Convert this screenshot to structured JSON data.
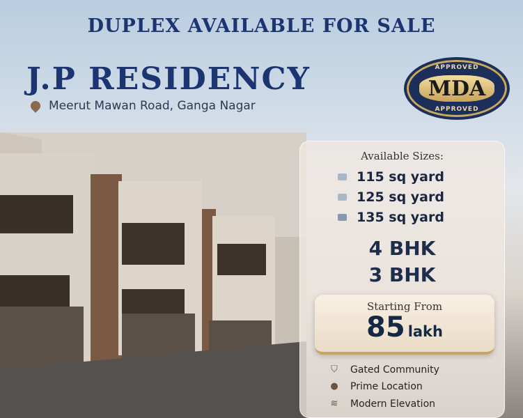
{
  "headline": "DUPLEX AVAILABLE FOR SALE",
  "project_name": "J.P RESIDENCY",
  "location": {
    "icon": "location-pin-icon",
    "text": "Meerut Mawan Road, Ganga Nagar"
  },
  "badge": {
    "top": "APPROVED",
    "main": "MDA",
    "bottom": "APPROVED"
  },
  "sizes": {
    "heading": "Available Sizes:",
    "items": [
      "115 sq yard",
      "125 sq yard",
      "135 sq yard"
    ]
  },
  "configurations": [
    "4 BHK",
    "3 BHK"
  ],
  "price": {
    "label": "Starting From",
    "value": "85",
    "unit": "lakh"
  },
  "features": [
    {
      "icon": "shield-icon",
      "label": "Gated Community"
    },
    {
      "icon": "location-pin-icon",
      "label": "Prime Location"
    },
    {
      "icon": "building-icon",
      "label": "Modern Elevation"
    }
  ],
  "colors": {
    "navy": "#1c3470",
    "gold": "#c9a35a"
  }
}
